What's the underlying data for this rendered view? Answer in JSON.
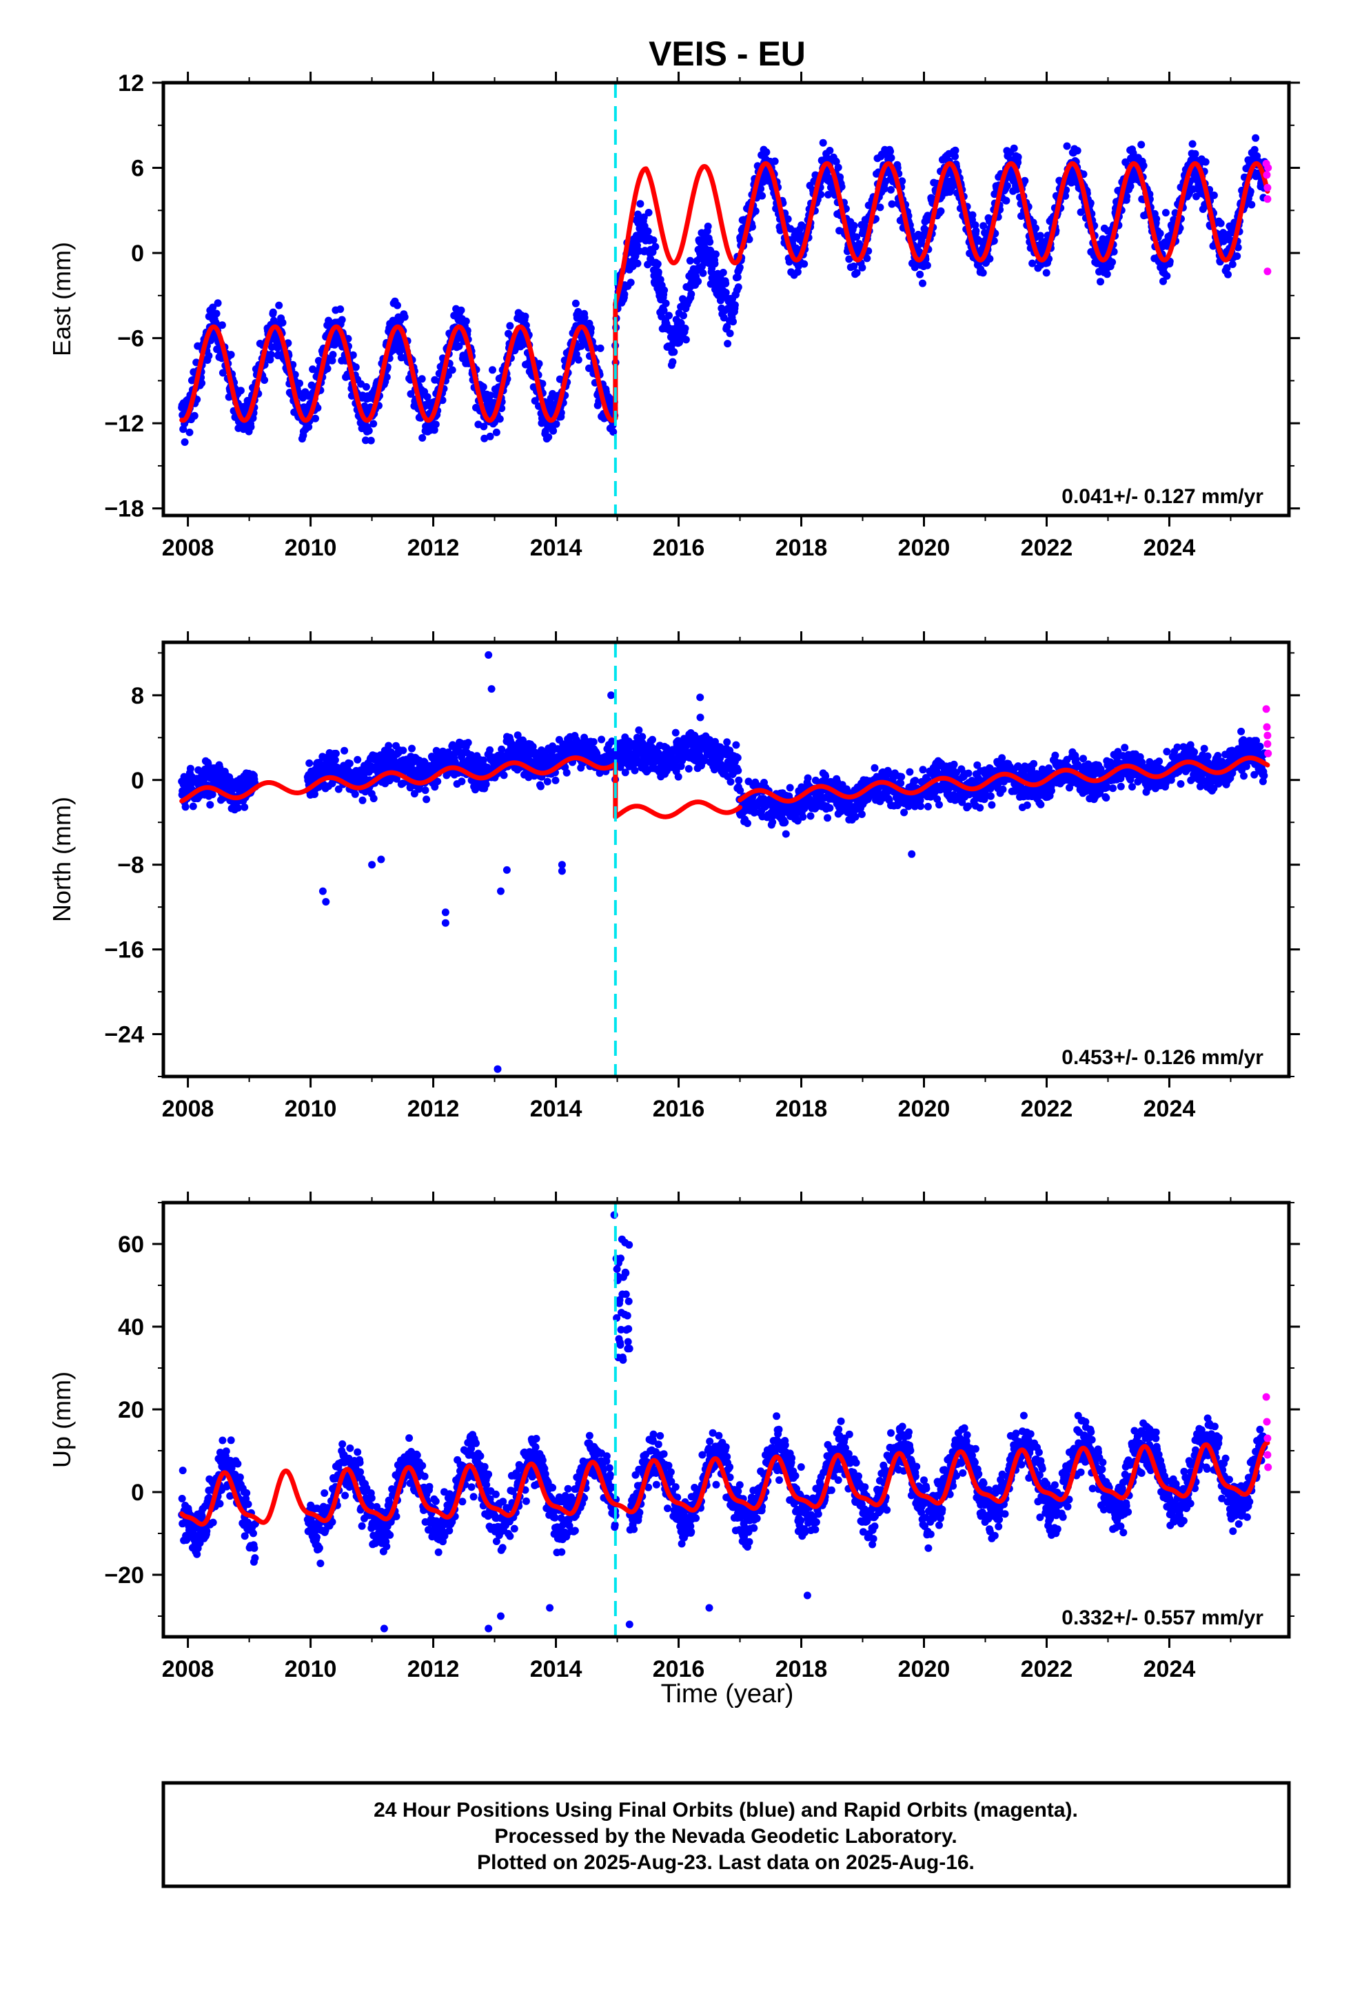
{
  "title": "VEIS - EU",
  "colors": {
    "final_orbits": "#0000ff",
    "rapid_orbits": "#ff00ff",
    "model_fit": "#ff0000",
    "offset_line": "#00e5ee",
    "frame": "#000000"
  },
  "chart_data": [
    {
      "type": "scatter",
      "panel": "east",
      "ylabel": "East (mm)",
      "xlim": [
        2007.6,
        2025.95
      ],
      "ylim": [
        -18.5,
        12
      ],
      "yticks": [
        -18,
        -12,
        -6,
        0,
        6,
        12
      ],
      "xticks": [
        2008,
        2010,
        2012,
        2014,
        2016,
        2018,
        2020,
        2022,
        2024
      ],
      "grid": false,
      "rate_label": "0.041+/- 0.127 mm/yr",
      "offset_epoch": 2014.97,
      "data_range": [
        2007.9,
        2025.55
      ],
      "rapid_range": [
        2025.52,
        2025.62
      ],
      "series": [
        {
          "kind": "final_orbits_scatter",
          "trend": [
            [
              2007.9,
              -8.5
            ],
            [
              2014.95,
              -8.5
            ],
            [
              2014.99,
              -0.5
            ],
            [
              2015.3,
              -1.2
            ],
            [
              2015.9,
              -3.0
            ],
            [
              2016.4,
              -3.0
            ],
            [
              2016.9,
              -1.5
            ],
            [
              2017.0,
              3.0
            ],
            [
              2025.55,
              3.0
            ]
          ],
          "amplitude": 3.0,
          "noise": 1.4,
          "phase": 0.42
        },
        {
          "kind": "rapid_orbits_scatter",
          "points": [
            [
              2025.58,
              6.3
            ],
            [
              2025.59,
              5.5
            ],
            [
              2025.6,
              4.6
            ],
            [
              2025.6,
              3.8
            ],
            [
              2025.61,
              6.0
            ],
            [
              2025.6,
              -1.3
            ]
          ]
        },
        {
          "kind": "model_fit_line",
          "segments": [
            {
              "from": 2007.9,
              "to": 2014.97,
              "offset": -8.5,
              "amplitude": 3.3,
              "phase": 0.42
            },
            {
              "from": 2014.97,
              "to": 2017.0,
              "offset": 2.7,
              "amplitude": 3.4,
              "phase": 0.42,
              "ramp_from": -0.3
            },
            {
              "from": 2017.0,
              "to": 2025.6,
              "offset": 2.9,
              "amplitude": 3.4,
              "phase": 0.42
            }
          ]
        }
      ]
    },
    {
      "type": "scatter",
      "panel": "north",
      "ylabel": "North (mm)",
      "xlim": [
        2007.6,
        2025.95
      ],
      "ylim": [
        -28,
        13
      ],
      "yticks": [
        -24,
        -16,
        -8,
        0,
        8
      ],
      "xticks": [
        2008,
        2010,
        2012,
        2014,
        2016,
        2018,
        2020,
        2022,
        2024
      ],
      "grid": false,
      "rate_label": "0.453+/- 0.126 mm/yr",
      "offset_epoch": 2014.97,
      "data_range": [
        2007.9,
        2025.55
      ],
      "gaps": [
        [
          2009.1,
          2009.95
        ]
      ],
      "rapid_range": [
        2025.52,
        2025.62
      ],
      "series": [
        {
          "kind": "final_orbits_scatter",
          "trend": [
            [
              2007.9,
              -0.8
            ],
            [
              2014.95,
              2.6
            ],
            [
              2014.99,
              2.3
            ],
            [
              2016.95,
              2.5
            ],
            [
              2017.0,
              -2.8
            ],
            [
              2019.0,
              -1.2
            ],
            [
              2025.55,
              1.8
            ]
          ],
          "amplitude": 0.7,
          "noise": 1.4,
          "phase": 0.3,
          "outliers": [
            [
              2012.9,
              11.8
            ],
            [
              2012.95,
              8.6
            ],
            [
              2013.1,
              -10.5
            ],
            [
              2013.05,
              -27.3
            ],
            [
              2012.2,
              -12.5
            ],
            [
              2012.2,
              -13.5
            ],
            [
              2010.2,
              -10.5
            ],
            [
              2010.25,
              -11.5
            ],
            [
              2011.0,
              -8.0
            ],
            [
              2011.15,
              -7.5
            ],
            [
              2014.1,
              -8.0
            ],
            [
              2014.1,
              -8.6
            ],
            [
              2014.9,
              8.0
            ],
            [
              2016.35,
              7.8
            ],
            [
              2019.8,
              -7.0
            ],
            [
              2013.2,
              -8.5
            ]
          ]
        },
        {
          "kind": "rapid_orbits_scatter",
          "points": [
            [
              2025.58,
              6.7
            ],
            [
              2025.59,
              5.0
            ],
            [
              2025.6,
              4.2
            ],
            [
              2025.6,
              3.4
            ],
            [
              2025.61,
              2.5
            ]
          ]
        },
        {
          "kind": "model_fit_line",
          "segments": [
            {
              "from": 2007.9,
              "to": 2014.97,
              "start": -1.5,
              "end": 1.8,
              "amplitude": 0.6,
              "phase": 0.3
            },
            {
              "from": 2014.97,
              "to": 2017.0,
              "start": -3.2,
              "end": -2.4,
              "amplitude": 0.6,
              "phase": 0.3
            },
            {
              "from": 2017.0,
              "to": 2025.6,
              "start": -1.7,
              "end": 1.6,
              "amplitude": 0.6,
              "phase": 0.3
            }
          ]
        }
      ]
    },
    {
      "type": "scatter",
      "panel": "up",
      "ylabel": "Up (mm)",
      "xlabel": "Time (year)",
      "xlim": [
        2007.6,
        2025.95
      ],
      "ylim": [
        -35,
        70
      ],
      "yticks": [
        -20,
        0,
        20,
        40,
        60
      ],
      "xticks": [
        2008,
        2010,
        2012,
        2014,
        2016,
        2018,
        2020,
        2022,
        2024
      ],
      "grid": false,
      "rate_label": "0.332+/- 0.557 mm/yr",
      "offset_epoch": 2014.97,
      "data_range": [
        2007.9,
        2025.55
      ],
      "gaps": [
        [
          2009.1,
          2009.95
        ]
      ],
      "rapid_range": [
        2025.52,
        2025.62
      ],
      "series": [
        {
          "kind": "final_orbits_scatter",
          "trend": [
            [
              2007.9,
              -2.5
            ],
            [
              2025.55,
              5.0
            ]
          ],
          "amplitude": 8.0,
          "noise": 5.0,
          "phase": 0.62,
          "spike": {
            "from": 2014.98,
            "to": 2015.2,
            "min": 30,
            "max": 67
          },
          "outliers": [
            [
              2011.2,
              -33
            ],
            [
              2012.9,
              -33
            ],
            [
              2013.1,
              -30
            ],
            [
              2013.9,
              -28
            ],
            [
              2015.2,
              -32
            ],
            [
              2016.5,
              -28
            ],
            [
              2018.1,
              -25
            ],
            [
              2014.95,
              67
            ]
          ]
        },
        {
          "kind": "rapid_orbits_scatter",
          "points": [
            [
              2025.58,
              23
            ],
            [
              2025.59,
              17
            ],
            [
              2025.6,
              13
            ],
            [
              2025.6,
              9
            ],
            [
              2025.61,
              6
            ]
          ]
        },
        {
          "kind": "model_fit_line",
          "segments": [
            {
              "from": 2007.9,
              "to": 2025.6,
              "start": -3.0,
              "end": 4.5,
              "amplitude": 7.5,
              "phase": 0.62,
              "sharpness": 2.0
            }
          ]
        }
      ]
    }
  ],
  "footer": {
    "line1": "24 Hour Positions Using Final Orbits (blue) and Rapid Orbits (magenta).",
    "line2": "Processed by the Nevada Geodetic Laboratory.",
    "line3": "Plotted on 2025-Aug-23. Last data on 2025-Aug-16."
  }
}
